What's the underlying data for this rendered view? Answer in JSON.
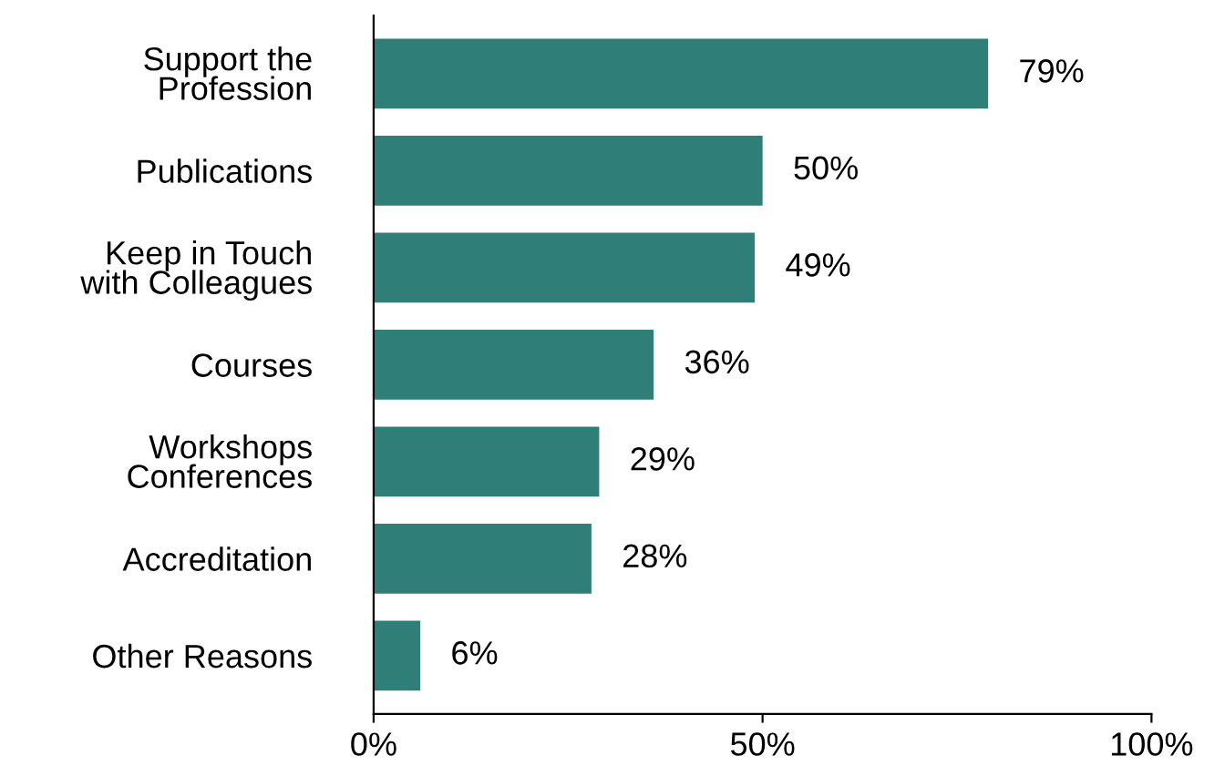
{
  "chart_data": {
    "type": "bar",
    "orientation": "horizontal",
    "categories": [
      "Support the\nProfession",
      "Publications",
      "Keep in Touch\nwith Colleagues",
      "Courses",
      "Workshops\nConferences",
      "Accreditation",
      "Other Reasons"
    ],
    "values": [
      79,
      50,
      49,
      36,
      29,
      28,
      6
    ],
    "value_labels": [
      "79%",
      "50%",
      "49%",
      "36%",
      "29%",
      "28%",
      "6%"
    ],
    "color": "#2f7f78",
    "xlim": [
      0,
      100
    ],
    "xticks": [
      {
        "value": 0,
        "label": "0%"
      },
      {
        "value": 50,
        "label": "50%"
      },
      {
        "value": 100,
        "label": "100%"
      }
    ],
    "grid": false,
    "legend": false
  }
}
